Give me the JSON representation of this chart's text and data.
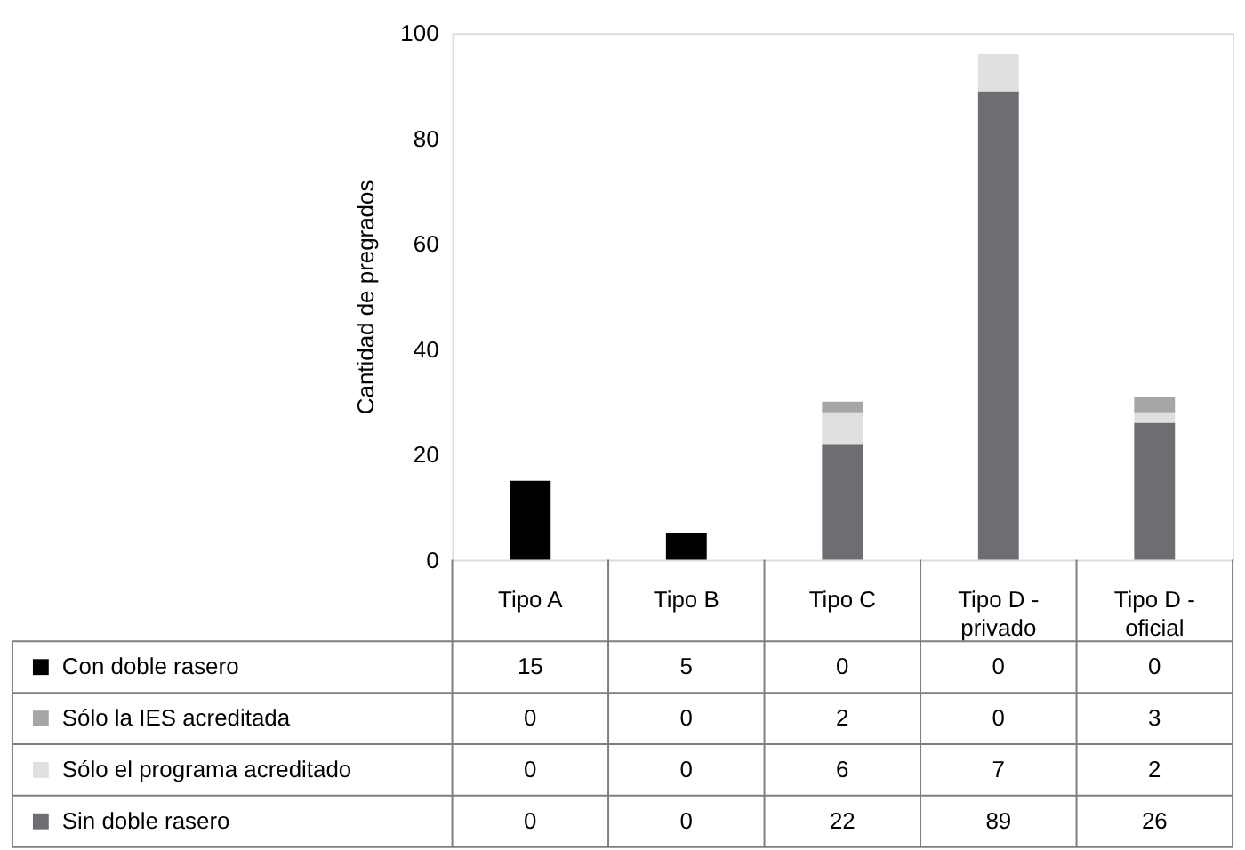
{
  "chart_data": {
    "type": "bar",
    "stacked": true,
    "ylabel": "Cantidad de pregrados",
    "categories": [
      "Tipo A",
      "Tipo B",
      "Tipo C",
      "Tipo D - privado",
      "Tipo D - oficial"
    ],
    "series": [
      {
        "name": "Sin doble rasero",
        "color": "#6d6e71",
        "values": [
          0,
          0,
          22,
          89,
          26
        ]
      },
      {
        "name": "Sólo el programa acreditado",
        "color": "#e0e0e0",
        "values": [
          0,
          0,
          6,
          7,
          2
        ]
      },
      {
        "name": "Sólo la IES acreditada",
        "color": "#a6a6a6",
        "values": [
          0,
          0,
          2,
          0,
          3
        ]
      },
      {
        "name": "Con doble rasero",
        "color": "#000000",
        "values": [
          15,
          5,
          0,
          0,
          0
        ]
      }
    ],
    "ylim": [
      0,
      100
    ],
    "yticks": [
      0,
      20,
      40,
      60,
      80,
      100
    ],
    "grid": false,
    "legend": "bottom left",
    "data_labels": true
  }
}
